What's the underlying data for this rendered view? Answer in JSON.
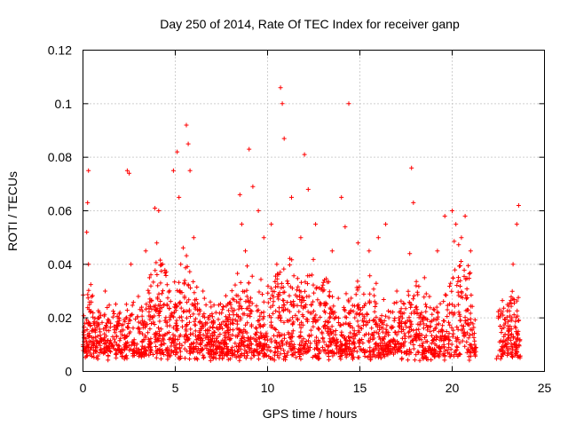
{
  "chart_data": {
    "type": "scatter",
    "title": "Day 250 of 2014, Rate Of TEC Index for receiver ganp",
    "xlabel": "GPS time / hours",
    "ylabel": "ROTI / TECUs",
    "xlim": [
      0,
      25
    ],
    "ylim": [
      0,
      0.12
    ],
    "xticks": [
      0,
      5,
      10,
      15,
      20,
      25
    ],
    "xtick_labels": [
      "0",
      "5",
      "10",
      "15",
      "20",
      "25"
    ],
    "yticks": [
      0,
      0.02,
      0.04,
      0.06,
      0.08,
      0.1,
      0.12
    ],
    "ytick_labels": [
      "0",
      "0.02",
      "0.04",
      "0.06",
      "0.08",
      "0.1",
      "0.12"
    ],
    "grid": true,
    "marker": "+",
    "color": "#ff0000",
    "data_gap_hours": [
      21.3,
      22.4
    ],
    "series": [
      {
        "name": "ROTI",
        "note": "dense cloud of several thousand points, mostly between 0.005 and 0.04 TECU; representative sample of visible points listed",
        "x": [
          0.1,
          0.2,
          0.25,
          0.3,
          0.3,
          0.35,
          0.5,
          0.8,
          1.0,
          1.2,
          1.5,
          2.0,
          2.4,
          2.5,
          2.6,
          3.0,
          3.4,
          3.6,
          3.9,
          4.0,
          4.1,
          4.2,
          4.4,
          4.9,
          5.1,
          5.2,
          5.3,
          5.5,
          5.6,
          5.7,
          5.8,
          6.0,
          6.5,
          7.2,
          8.0,
          8.5,
          8.6,
          8.8,
          9.0,
          9.2,
          9.5,
          9.8,
          10.2,
          10.5,
          10.7,
          10.8,
          10.9,
          11.3,
          11.8,
          12.0,
          12.2,
          12.6,
          13.0,
          13.5,
          14.0,
          14.2,
          14.4,
          14.9,
          15.5,
          16.0,
          16.4,
          17.0,
          17.7,
          17.8,
          17.9,
          18.5,
          19.2,
          19.6,
          20.0,
          20.2,
          20.5,
          20.7,
          21.0,
          22.5,
          23.0,
          23.3,
          23.5,
          23.6
        ],
        "y": [
          0.018,
          0.052,
          0.063,
          0.075,
          0.04,
          0.025,
          0.015,
          0.02,
          0.012,
          0.03,
          0.018,
          0.022,
          0.075,
          0.074,
          0.04,
          0.028,
          0.045,
          0.035,
          0.061,
          0.048,
          0.06,
          0.033,
          0.025,
          0.075,
          0.082,
          0.065,
          0.04,
          0.028,
          0.092,
          0.085,
          0.075,
          0.05,
          0.03,
          0.022,
          0.025,
          0.066,
          0.055,
          0.045,
          0.083,
          0.069,
          0.06,
          0.05,
          0.055,
          0.04,
          0.106,
          0.1,
          0.087,
          0.065,
          0.05,
          0.081,
          0.068,
          0.055,
          0.03,
          0.045,
          0.065,
          0.054,
          0.1,
          0.048,
          0.045,
          0.05,
          0.055,
          0.03,
          0.044,
          0.076,
          0.063,
          0.035,
          0.045,
          0.058,
          0.06,
          0.055,
          0.05,
          0.058,
          0.045,
          0.02,
          0.025,
          0.04,
          0.055,
          0.062
        ]
      }
    ]
  }
}
